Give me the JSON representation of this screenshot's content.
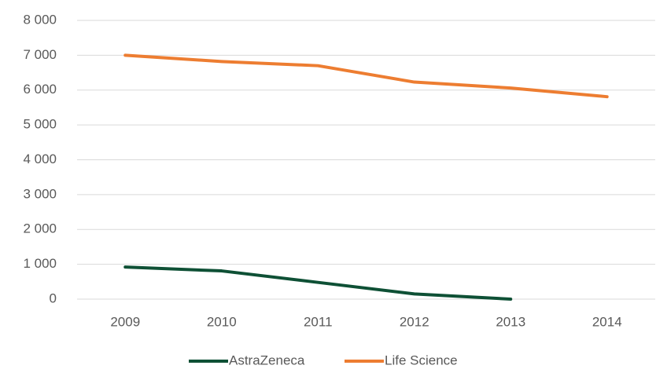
{
  "chart_data": {
    "type": "line",
    "categories": [
      "2009",
      "2010",
      "2011",
      "2012",
      "2013",
      "2014"
    ],
    "series": [
      {
        "name": "AstraZeneca",
        "color": "#0e5035",
        "values": [
          920,
          810,
          480,
          150,
          0,
          null
        ]
      },
      {
        "name": "Life Science",
        "color": "#ed7d31",
        "values": [
          7000,
          6820,
          6700,
          6230,
          6060,
          5810
        ]
      }
    ],
    "ylim": [
      0,
      8000
    ],
    "yticks": [
      0,
      {
        "value": 1000,
        "label": "1 000"
      },
      {
        "value": 2000,
        "label": "2 000"
      },
      {
        "value": 3000,
        "label": "3 000"
      },
      {
        "value": 4000,
        "label": "4 000"
      },
      {
        "value": 5000,
        "label": "5 000"
      },
      {
        "value": 6000,
        "label": "6 000"
      },
      {
        "value": 7000,
        "label": "7 000"
      },
      {
        "value": 8000,
        "label": "8 000"
      }
    ],
    "grid": true,
    "legend": "bottom"
  }
}
